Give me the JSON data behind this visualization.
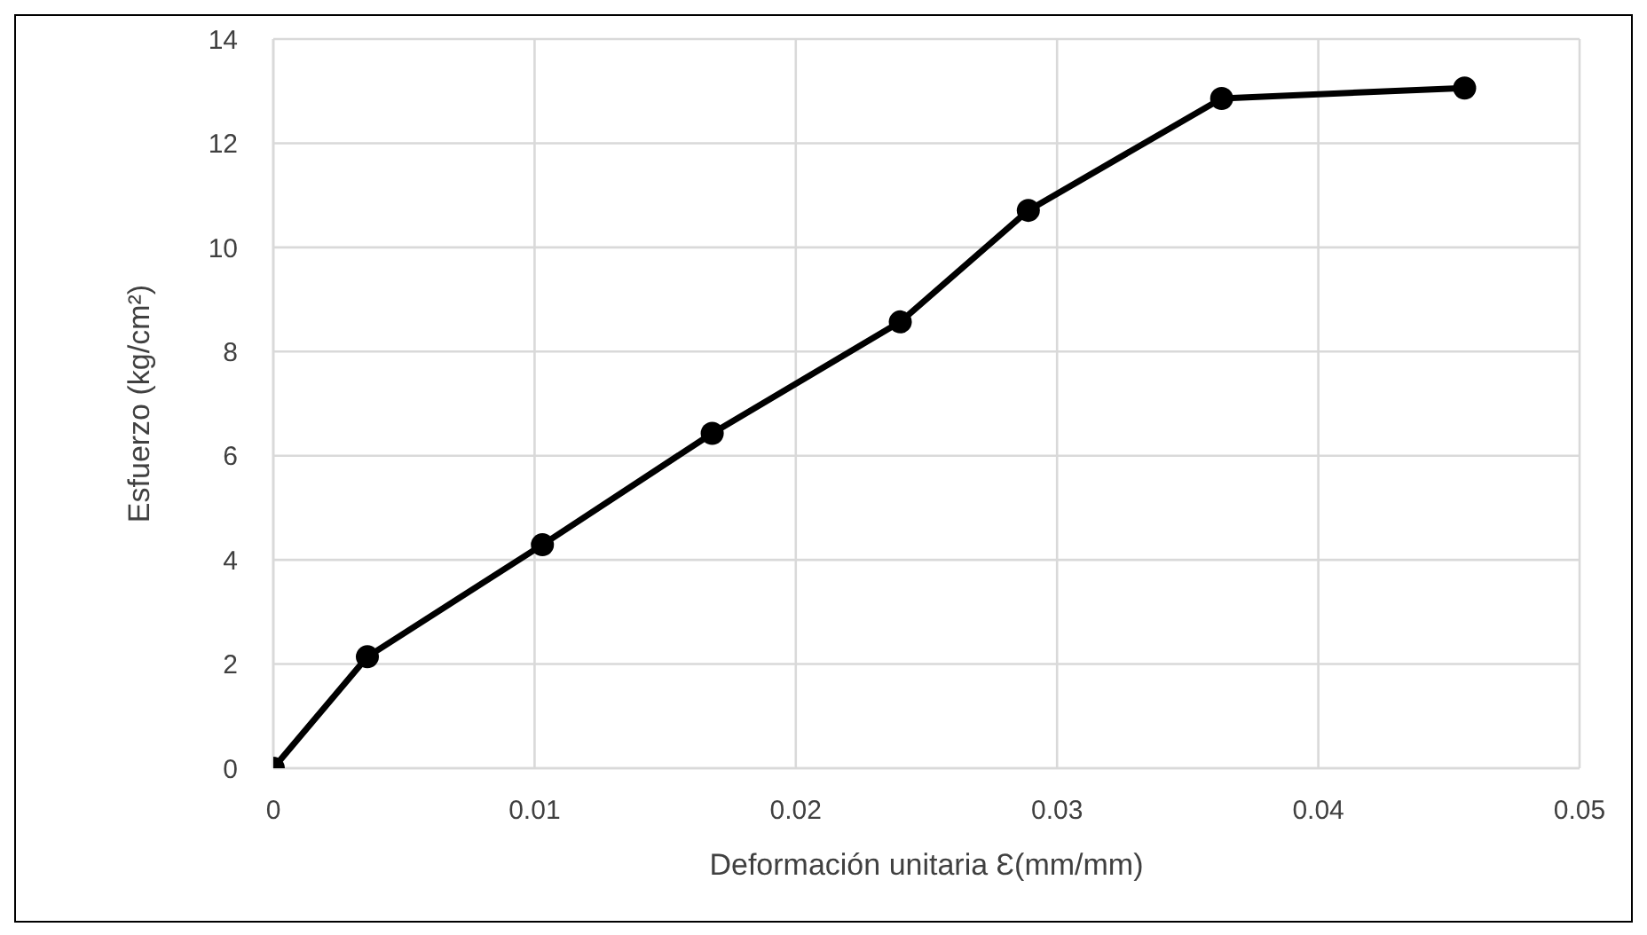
{
  "chart_data": {
    "type": "line",
    "xlabel": "Deformación unitaria Ɛ(mm/mm)",
    "ylabel": "Esfuerzo (kg/cm²)",
    "x": [
      0,
      0.0036,
      0.0103,
      0.0168,
      0.024,
      0.0289,
      0.0363,
      0.0456
    ],
    "series": [
      {
        "color": "#000000",
        "values": [
          0,
          2.14,
          4.29,
          6.43,
          8.57,
          10.71,
          12.86,
          13.06
        ]
      }
    ],
    "xlim": [
      0,
      0.05
    ],
    "xticks": [
      0,
      0.01,
      0.02,
      0.03,
      0.04,
      0.05
    ],
    "ylim": [
      0,
      14
    ],
    "yticks": [
      0,
      2,
      4,
      6,
      8,
      10,
      12,
      14
    ],
    "grid": true,
    "marker": "circle",
    "line_style": "solid"
  }
}
